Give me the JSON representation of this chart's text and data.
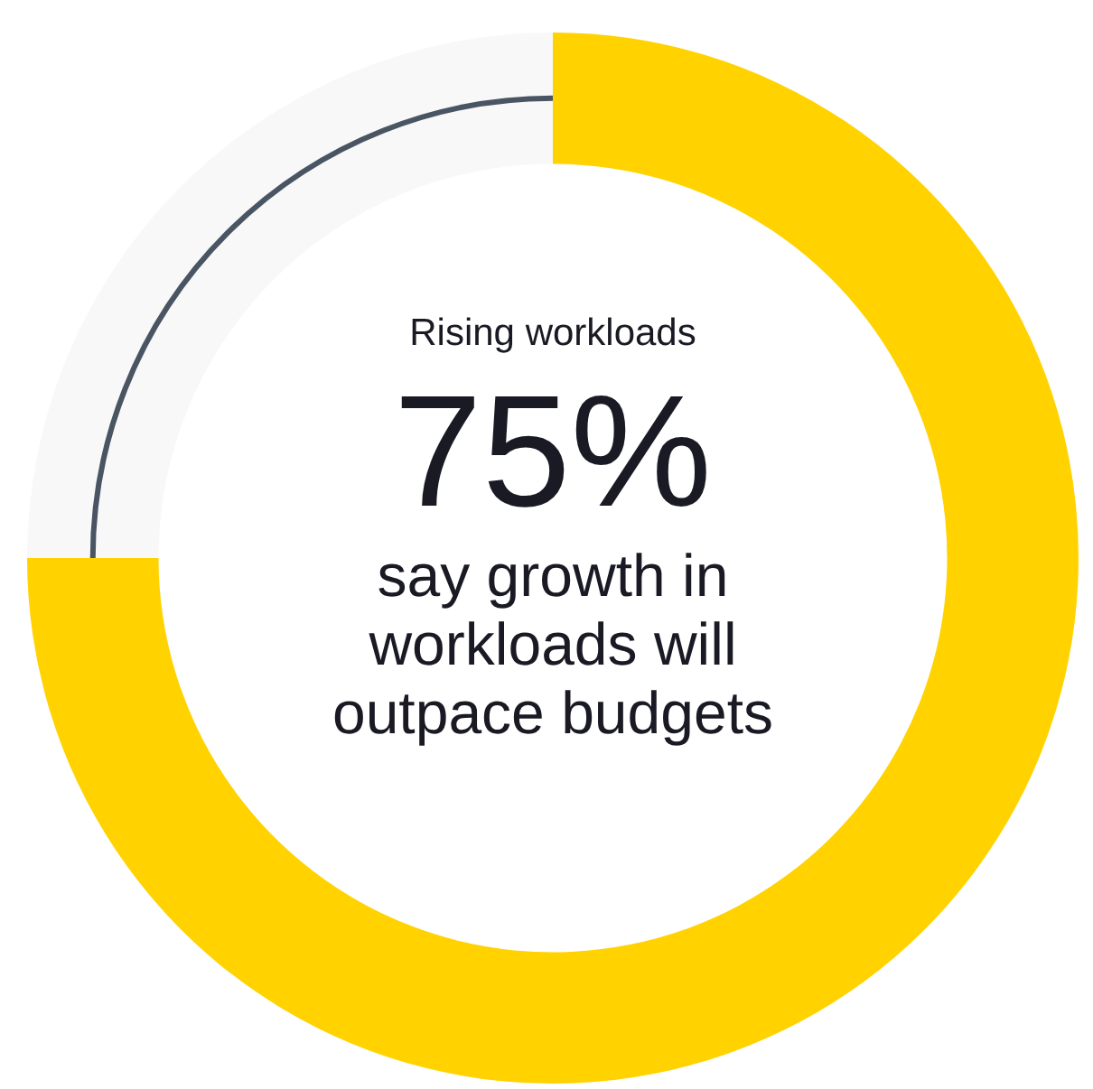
{
  "chart_data": {
    "type": "donut",
    "title": "Rising workloads",
    "subtitle": "say growth in workloads will outpace budgets",
    "categories": [
      null,
      null
    ],
    "values": [
      75,
      25
    ],
    "colors": [
      "#ffd200",
      "#4a5563"
    ],
    "value_labels": [
      "75%",
      null
    ],
    "legend": false
  }
}
